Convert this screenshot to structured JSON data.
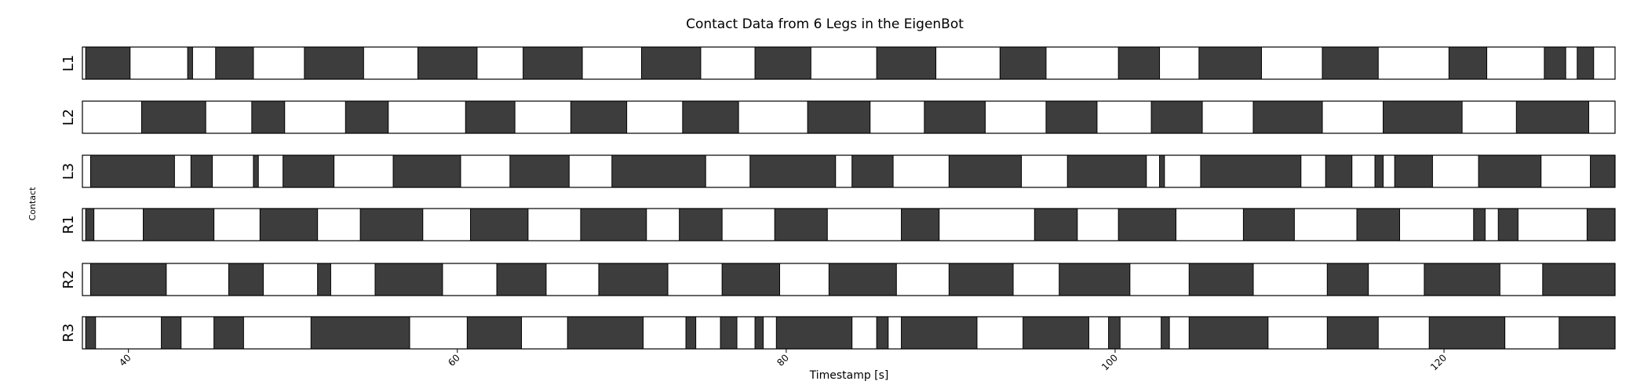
{
  "chart_data": {
    "type": "contact-timeline",
    "title": "Contact Data from 6 Legs in the EigenBot",
    "xlabel": "Timestamp [s]",
    "ylabel": "Contact",
    "xlim": [
      37.2,
      130.4
    ],
    "xticks": [
      40,
      60,
      80,
      100,
      120
    ],
    "colors": {
      "contact": "#3d3d3d",
      "swing": "#ffffff",
      "edge": "#000000"
    },
    "series": [
      {
        "name": "L1",
        "contact": [
          [
            37.4,
            40.1
          ],
          [
            43.6,
            43.9
          ],
          [
            45.3,
            47.6
          ],
          [
            50.7,
            54.3
          ],
          [
            57.6,
            61.2
          ],
          [
            64.0,
            67.6
          ],
          [
            71.2,
            74.8
          ],
          [
            78.1,
            81.5
          ],
          [
            85.5,
            89.1
          ],
          [
            93.0,
            95.8
          ],
          [
            100.2,
            102.7
          ],
          [
            105.1,
            108.9
          ],
          [
            112.6,
            116.0
          ],
          [
            120.3,
            122.6
          ],
          [
            126.1,
            127.4
          ],
          [
            128.1,
            129.1
          ]
        ]
      },
      {
        "name": "L2",
        "contact": [
          [
            40.8,
            44.7
          ],
          [
            47.5,
            49.5
          ],
          [
            53.2,
            55.8
          ],
          [
            60.5,
            63.5
          ],
          [
            66.9,
            70.3
          ],
          [
            73.7,
            77.1
          ],
          [
            81.3,
            85.1
          ],
          [
            88.4,
            92.1
          ],
          [
            95.8,
            98.9
          ],
          [
            102.2,
            105.3
          ],
          [
            108.4,
            112.6
          ],
          [
            116.3,
            121.1
          ],
          [
            124.4,
            128.8
          ]
        ]
      },
      {
        "name": "L3",
        "contact": [
          [
            37.7,
            42.8
          ],
          [
            43.8,
            45.1
          ],
          [
            47.6,
            47.9
          ],
          [
            49.4,
            52.5
          ],
          [
            56.1,
            60.2
          ],
          [
            63.2,
            66.8
          ],
          [
            69.4,
            75.1
          ],
          [
            77.8,
            83.0
          ],
          [
            84.0,
            86.5
          ],
          [
            89.9,
            94.3
          ],
          [
            97.1,
            101.9
          ],
          [
            102.7,
            103.0
          ],
          [
            105.2,
            111.3
          ],
          [
            112.8,
            114.4
          ],
          [
            115.8,
            116.3
          ],
          [
            117.0,
            119.3
          ],
          [
            122.1,
            125.9
          ],
          [
            128.9,
            131.2
          ]
        ]
      },
      {
        "name": "R1",
        "contact": [
          [
            37.4,
            37.9
          ],
          [
            40.9,
            45.2
          ],
          [
            48.0,
            51.5
          ],
          [
            54.1,
            57.9
          ],
          [
            60.8,
            64.3
          ],
          [
            67.5,
            71.5
          ],
          [
            73.5,
            76.1
          ],
          [
            79.3,
            82.5
          ],
          [
            87.0,
            89.3
          ],
          [
            95.1,
            97.7
          ],
          [
            100.2,
            103.7
          ],
          [
            107.8,
            110.9
          ],
          [
            114.7,
            117.3
          ],
          [
            121.8,
            122.5
          ],
          [
            123.3,
            124.5
          ],
          [
            128.7,
            130.4
          ]
        ]
      },
      {
        "name": "R2",
        "contact": [
          [
            37.7,
            42.3
          ],
          [
            46.1,
            48.2
          ],
          [
            51.5,
            52.3
          ],
          [
            55.0,
            59.1
          ],
          [
            62.4,
            65.4
          ],
          [
            68.6,
            72.8
          ],
          [
            76.1,
            79.6
          ],
          [
            82.6,
            86.7
          ],
          [
            89.9,
            93.8
          ],
          [
            96.6,
            100.9
          ],
          [
            104.5,
            108.4
          ],
          [
            112.9,
            115.4
          ],
          [
            118.8,
            123.4
          ],
          [
            126.0,
            130.4
          ]
        ]
      },
      {
        "name": "R3",
        "contact": [
          [
            37.4,
            38.0
          ],
          [
            42.0,
            43.2
          ],
          [
            45.2,
            47.0
          ],
          [
            51.1,
            57.1
          ],
          [
            60.6,
            63.9
          ],
          [
            66.7,
            71.3
          ],
          [
            73.9,
            74.5
          ],
          [
            76.0,
            77.0
          ],
          [
            78.1,
            78.6
          ],
          [
            79.4,
            84.0
          ],
          [
            85.5,
            86.2
          ],
          [
            87.0,
            91.6
          ],
          [
            94.4,
            98.4
          ],
          [
            99.6,
            100.3
          ],
          [
            102.8,
            103.3
          ],
          [
            104.5,
            109.3
          ],
          [
            112.9,
            116.0
          ],
          [
            119.1,
            123.7
          ],
          [
            127.0,
            131.0
          ]
        ]
      }
    ]
  }
}
